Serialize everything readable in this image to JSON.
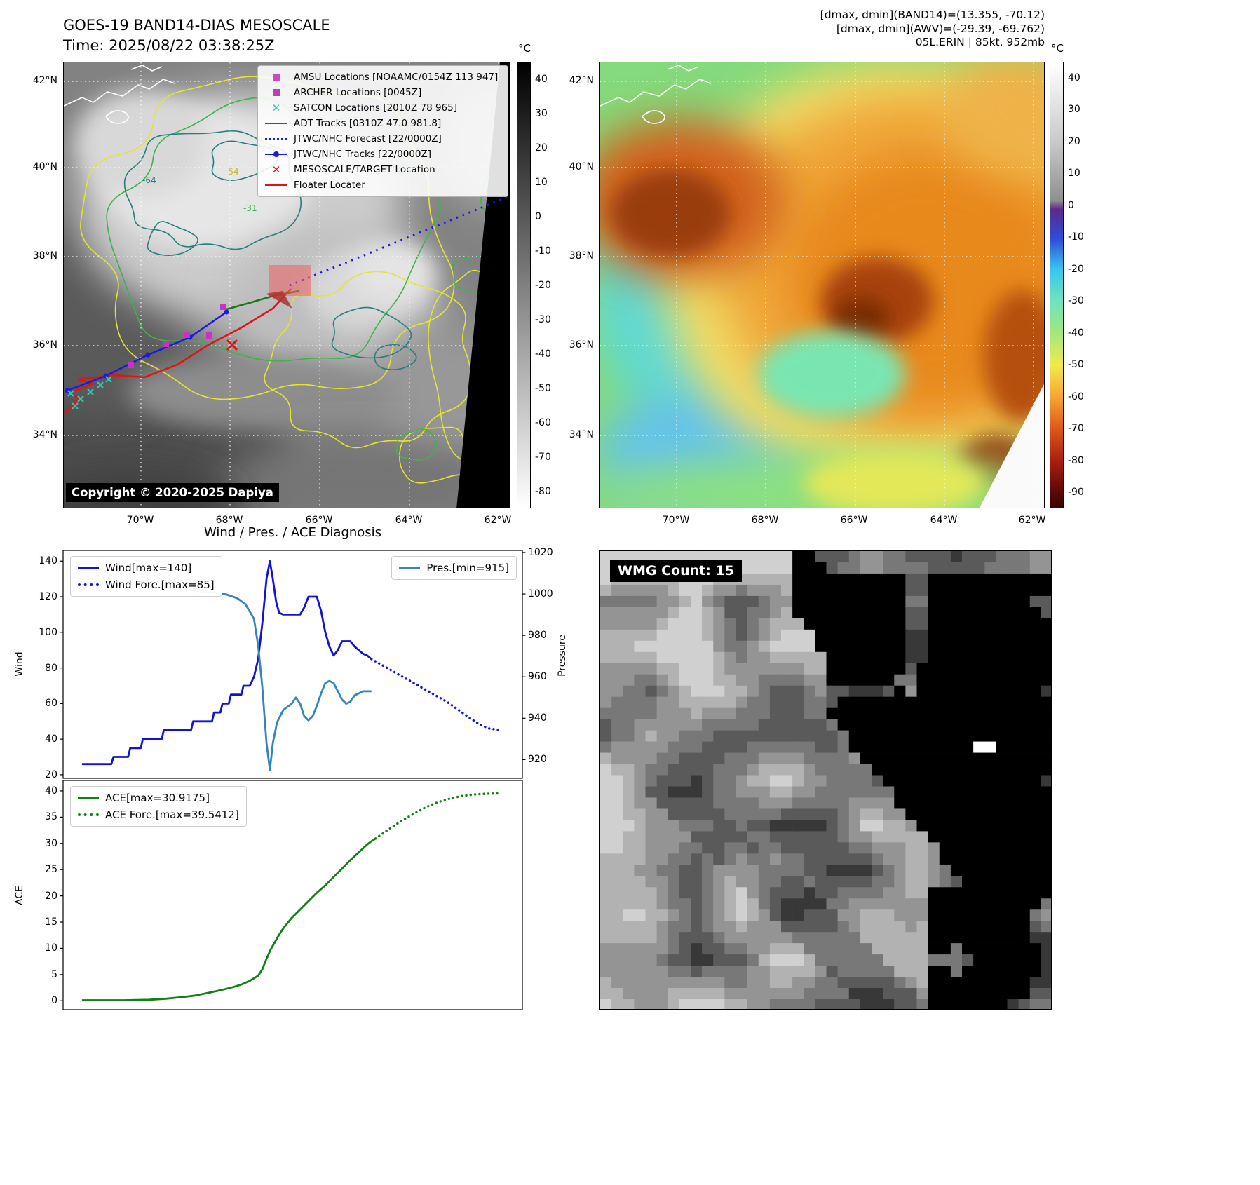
{
  "band14": {
    "title": "GOES-19 BAND14-DIAS MESOSCALE",
    "time_label": "Time: 2025/08/22 03:38:25Z",
    "copyright": "Copyright © 2020-2025 Dapiya",
    "colorbar_unit": "°C",
    "colorbar_ticks": [
      40,
      30,
      20,
      10,
      0,
      -10,
      -20,
      -30,
      -40,
      -50,
      -60,
      -70,
      -80
    ],
    "lat_ticks": [
      "42°N",
      "40°N",
      "38°N",
      "36°N",
      "34°N"
    ],
    "lon_ticks": [
      "70°W",
      "68°W",
      "66°W",
      "64°W",
      "62°W"
    ],
    "contour_labels": [
      {
        "text": "-64",
        "color": "#267d7d"
      },
      {
        "text": "-54",
        "color": "#c8b82a"
      },
      {
        "text": "-31",
        "color": "#3db34d"
      }
    ],
    "legend": [
      {
        "label": "AMSU Locations [NOAAMC/0154Z 113 947]",
        "marker": "square",
        "color": "#cc44cc"
      },
      {
        "label": "ARCHER Locations [0045Z]",
        "marker": "square",
        "color": "#b840b8"
      },
      {
        "label": "SATCON Locations [2010Z 78 965]",
        "marker": "x",
        "color": "#2ec8b4"
      },
      {
        "label": "ADT Tracks [0310Z 47.0 981.8]",
        "marker": "line",
        "color": "#157a15"
      },
      {
        "label": "JTWC/NHC Forecast [22/0000Z]",
        "marker": "dotted",
        "color": "#1a1ae0"
      },
      {
        "label": "JTWC/NHC Tracks [22/0000Z]",
        "marker": "line-dot",
        "color": "#1a1ae0"
      },
      {
        "label": "MESOSCALE/TARGET Location",
        "marker": "x",
        "color": "#e01414"
      },
      {
        "label": "Floater Locater",
        "marker": "line",
        "color": "#e01414"
      }
    ]
  },
  "awv": {
    "header_line1": "[dmax, dmin](BAND14)=(13.355, -70.12)",
    "header_line2": "[dmax, dmin](AWV)=(-29.39, -69.762)",
    "header_line3": "05L.ERIN | 85kt, 952mb",
    "colorbar_unit": "°C",
    "colorbar_ticks": [
      40,
      30,
      20,
      10,
      0,
      -10,
      -20,
      -30,
      -40,
      -50,
      -60,
      -70,
      -80,
      -90
    ],
    "lat_ticks": [
      "42°N",
      "40°N",
      "38°N",
      "36°N",
      "34°N"
    ],
    "lon_ticks": [
      "70°W",
      "68°W",
      "66°W",
      "64°W",
      "62°W"
    ]
  },
  "wmg": {
    "label": "WMG Count: 15"
  },
  "chart_data": [
    {
      "type": "line",
      "title": "Wind / Pres. / ACE Diagnosis",
      "ylabel_left": "Wind",
      "ylabel_right": "Pressure",
      "xlim": [
        -4.5,
        105
      ],
      "ylim_left": [
        18,
        146
      ],
      "ylim_right": [
        911,
        1021
      ],
      "yticks_left": [
        20,
        40,
        60,
        80,
        100,
        120,
        140
      ],
      "yticks_right": [
        920,
        940,
        960,
        980,
        1000,
        1020
      ],
      "legend_boxes": [
        {
          "position": "top-left",
          "items": [
            {
              "label": "Wind[max=140]",
              "style": "solid",
              "color": "#1313d8"
            },
            {
              "label": "Wind Fore.[max=85]",
              "style": "dotted",
              "color": "#1313d8"
            }
          ]
        },
        {
          "position": "top-right",
          "items": [
            {
              "label": "Pres.[min=915]",
              "style": "solid",
              "color": "#3585bd"
            }
          ]
        }
      ],
      "series": [
        {
          "name": "Wind",
          "axis": "left",
          "color": "#1313d8",
          "style": "solid",
          "points": [
            [
              0,
              26
            ],
            [
              7,
              26
            ],
            [
              7.5,
              30
            ],
            [
              11,
              30
            ],
            [
              11.5,
              35
            ],
            [
              14,
              35
            ],
            [
              14.5,
              40
            ],
            [
              19,
              40
            ],
            [
              19.5,
              45
            ],
            [
              26,
              45
            ],
            [
              26.5,
              50
            ],
            [
              31,
              50
            ],
            [
              31.5,
              55
            ],
            [
              33,
              55
            ],
            [
              33.5,
              60
            ],
            [
              35,
              60
            ],
            [
              35.5,
              65
            ],
            [
              38,
              65
            ],
            [
              38.5,
              70
            ],
            [
              40,
              70
            ],
            [
              41,
              75
            ],
            [
              42,
              85
            ],
            [
              43,
              105
            ],
            [
              44,
              130
            ],
            [
              44.8,
              140
            ],
            [
              45.5,
              130
            ],
            [
              46.3,
              117
            ],
            [
              47,
              111
            ],
            [
              48,
              110
            ],
            [
              52,
              110
            ],
            [
              53,
              114
            ],
            [
              54,
              120
            ],
            [
              56,
              120
            ],
            [
              57,
              112
            ],
            [
              58,
              100
            ],
            [
              59,
              92
            ],
            [
              60,
              87
            ],
            [
              61,
              90
            ],
            [
              62,
              95
            ],
            [
              64,
              95
            ],
            [
              65,
              92
            ],
            [
              66,
              90
            ],
            [
              67,
              88
            ],
            [
              68,
              87
            ],
            [
              69,
              85
            ]
          ]
        },
        {
          "name": "Wind Fore.",
          "axis": "left",
          "color": "#1313d8",
          "style": "dotted",
          "points": [
            [
              69,
              85
            ],
            [
              72,
              81
            ],
            [
              75,
              77
            ],
            [
              78,
              73
            ],
            [
              81,
              69
            ],
            [
              84,
              65
            ],
            [
              87,
              61
            ],
            [
              90,
              56
            ],
            [
              93,
              51
            ],
            [
              95,
              48
            ],
            [
              97,
              46
            ],
            [
              100,
              45
            ]
          ]
        },
        {
          "name": "Pres.",
          "axis": "right",
          "color": "#3585bd",
          "style": "solid",
          "points": [
            [
              0,
              1005
            ],
            [
              8,
              1005
            ],
            [
              16,
              1004
            ],
            [
              24,
              1002
            ],
            [
              30,
              1001
            ],
            [
              34,
              1000
            ],
            [
              37,
              998
            ],
            [
              39,
              995
            ],
            [
              41,
              988
            ],
            [
              42,
              975
            ],
            [
              43,
              955
            ],
            [
              44,
              928
            ],
            [
              44.8,
              915
            ],
            [
              45.5,
              928
            ],
            [
              46.5,
              938
            ],
            [
              48,
              944
            ],
            [
              50,
              947
            ],
            [
              51,
              950
            ],
            [
              52,
              947
            ],
            [
              53,
              941
            ],
            [
              54,
              939
            ],
            [
              55,
              941
            ],
            [
              56,
              946
            ],
            [
              57,
              952
            ],
            [
              58,
              957
            ],
            [
              59,
              958
            ],
            [
              60,
              957
            ],
            [
              61,
              953
            ],
            [
              62,
              949
            ],
            [
              63,
              947
            ],
            [
              64,
              948
            ],
            [
              65,
              951
            ],
            [
              66,
              952
            ],
            [
              67,
              953
            ],
            [
              69,
              953
            ]
          ]
        }
      ]
    },
    {
      "type": "line",
      "ylabel_left": "ACE",
      "xlim": [
        -4.5,
        105
      ],
      "ylim_left": [
        -1.7,
        42
      ],
      "yticks_left": [
        0,
        5,
        10,
        15,
        20,
        25,
        30,
        35,
        40
      ],
      "legend_boxes": [
        {
          "position": "top-left",
          "items": [
            {
              "label": "ACE[max=30.9175]",
              "style": "solid",
              "color": "#128012"
            },
            {
              "label": "ACE Fore.[max=39.5412]",
              "style": "dotted",
              "color": "#128012"
            }
          ]
        }
      ],
      "series": [
        {
          "name": "ACE",
          "axis": "left",
          "color": "#128012",
          "style": "solid",
          "points": [
            [
              0,
              0.1
            ],
            [
              10,
              0.1
            ],
            [
              16,
              0.2
            ],
            [
              20,
              0.4
            ],
            [
              24,
              0.7
            ],
            [
              27,
              1.0
            ],
            [
              30,
              1.5
            ],
            [
              33,
              2.0
            ],
            [
              36,
              2.6
            ],
            [
              38,
              3.1
            ],
            [
              40,
              3.8
            ],
            [
              42,
              4.8
            ],
            [
              43,
              6.0
            ],
            [
              44,
              8.0
            ],
            [
              45,
              9.8
            ],
            [
              46,
              11.2
            ],
            [
              47,
              12.6
            ],
            [
              48,
              13.8
            ],
            [
              49,
              14.8
            ],
            [
              50,
              15.8
            ],
            [
              52,
              17.4
            ],
            [
              54,
              19.0
            ],
            [
              56,
              20.6
            ],
            [
              58,
              22.0
            ],
            [
              60,
              23.6
            ],
            [
              62,
              25.2
            ],
            [
              64,
              26.8
            ],
            [
              66,
              28.3
            ],
            [
              68,
              29.8
            ],
            [
              69,
              30.4
            ],
            [
              70,
              30.92
            ]
          ]
        },
        {
          "name": "ACE Fore.",
          "axis": "left",
          "color": "#128012",
          "style": "dotted",
          "points": [
            [
              70,
              30.92
            ],
            [
              73,
              32.6
            ],
            [
              76,
              34.2
            ],
            [
              79,
              35.6
            ],
            [
              82,
              36.9
            ],
            [
              85,
              37.9
            ],
            [
              88,
              38.6
            ],
            [
              91,
              39.1
            ],
            [
              94,
              39.35
            ],
            [
              97,
              39.48
            ],
            [
              100,
              39.54
            ]
          ]
        }
      ]
    }
  ]
}
